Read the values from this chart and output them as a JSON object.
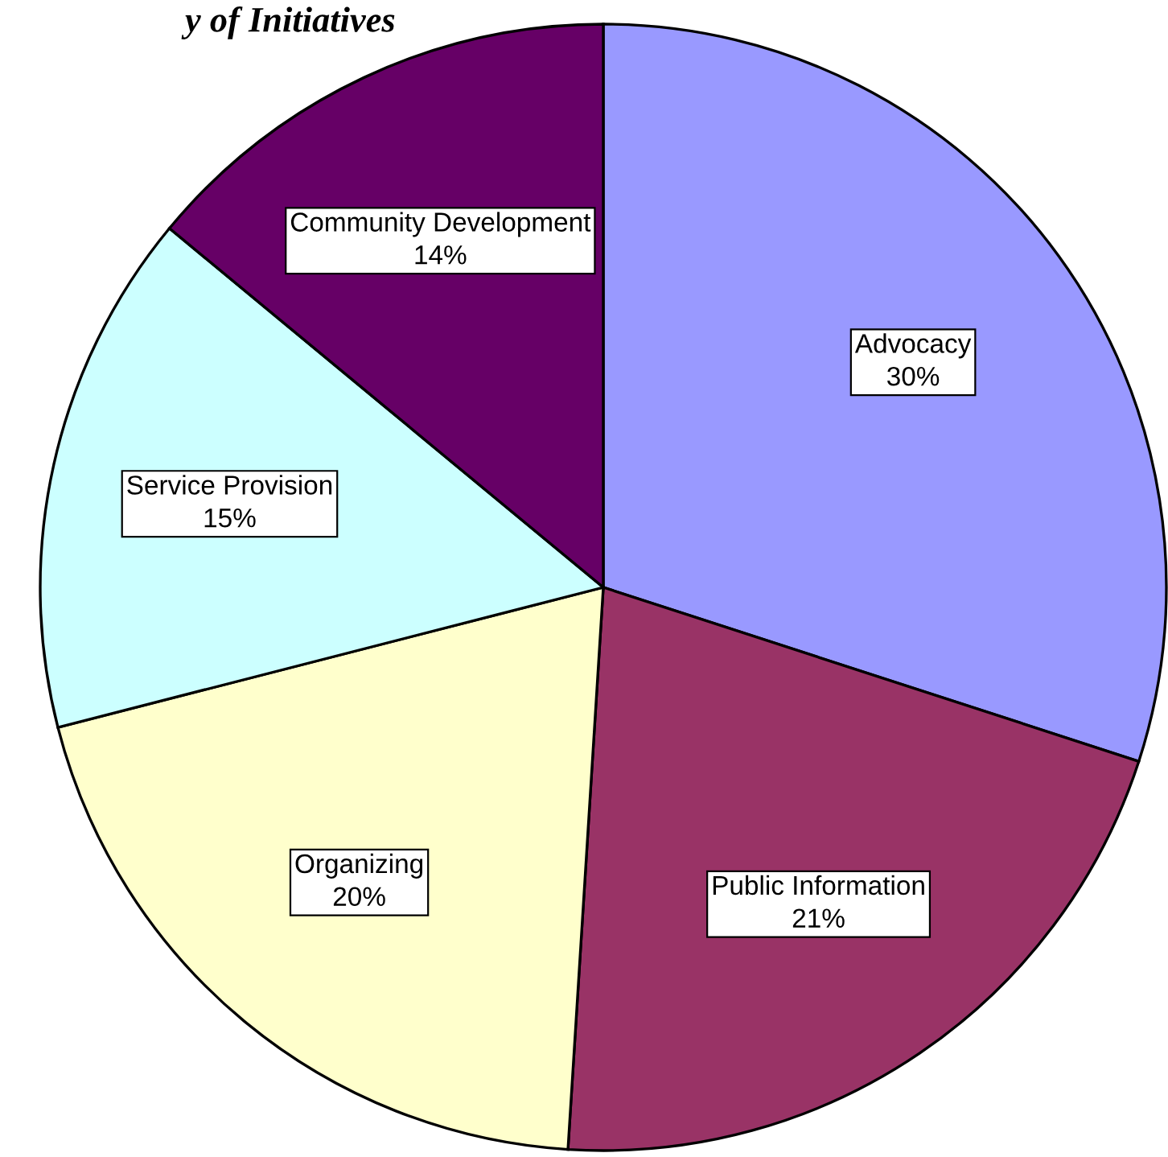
{
  "chart_data": {
    "type": "pie",
    "title": "y of Initiatives",
    "categories": [
      "Advocacy",
      "Public Information",
      "Organizing",
      "Service Provision",
      "Community Development"
    ],
    "values": [
      30,
      21,
      20,
      15,
      14
    ],
    "colors": [
      "#9999ff",
      "#993366",
      "#ffffcc",
      "#ccffff",
      "#660066"
    ],
    "value_labels": [
      "30%",
      "21%",
      "20%",
      "15%",
      "14%"
    ],
    "legend": false
  }
}
